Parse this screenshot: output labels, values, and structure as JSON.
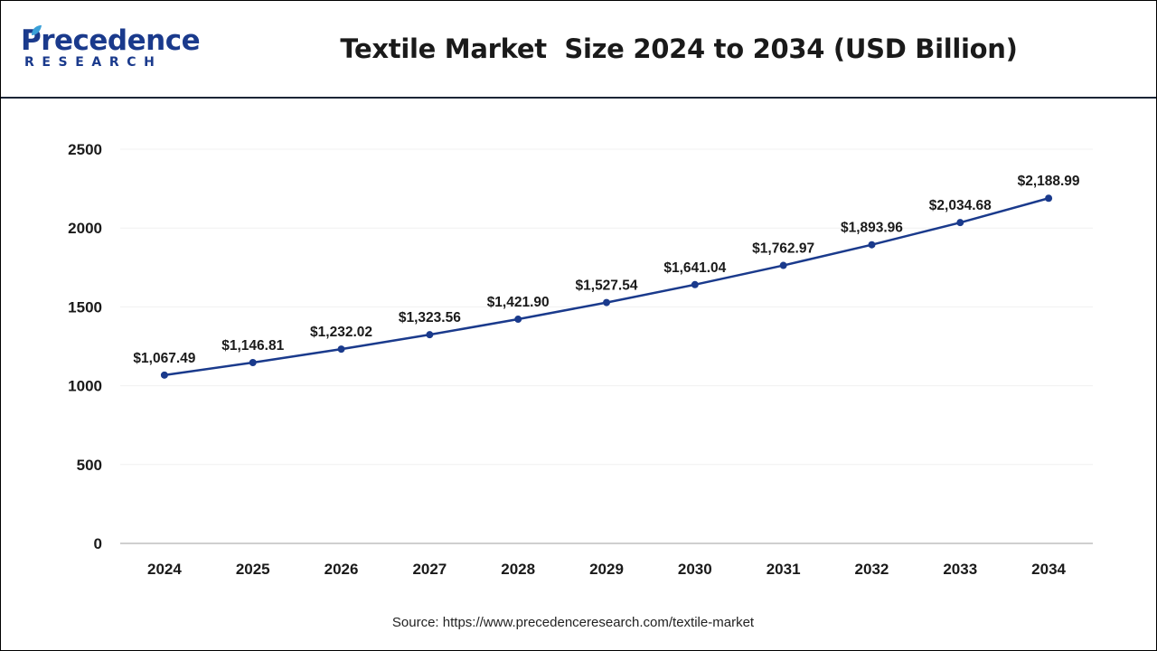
{
  "logo": {
    "brand": "Precedence",
    "sub": "RESEARCH"
  },
  "colors": {
    "line": "#1a3a8c",
    "point": "#1a3a8c",
    "axis": "#bfbfbf",
    "text": "#1a1a1a"
  },
  "chart_data": {
    "type": "line",
    "title": "Textile Market  Size 2024 to 2034 (USD Billion)",
    "xlabel": "",
    "ylabel": "",
    "categories": [
      "2024",
      "2025",
      "2026",
      "2027",
      "2028",
      "2029",
      "2030",
      "2031",
      "2032",
      "2033",
      "2034"
    ],
    "values": [
      1067.49,
      1146.81,
      1232.02,
      1323.56,
      1421.9,
      1527.54,
      1641.04,
      1762.97,
      1893.96,
      2034.68,
      2188.99
    ],
    "data_labels": [
      "$1,067.49",
      "$1,146.81",
      "$1,232.02",
      "$1,323.56",
      "$1,421.90",
      "$1,527.54",
      "$1,641.04",
      "$1,762.97",
      "$1,893.96",
      "$2,034.68",
      "$2,188.99"
    ],
    "ylim": [
      0,
      2500
    ],
    "yticks": [
      "0",
      "500",
      "1000",
      "1500",
      "2000",
      "2500"
    ],
    "grid": false,
    "legend": "none"
  },
  "source": "Source: https://www.precedenceresearch.com/textile-market"
}
